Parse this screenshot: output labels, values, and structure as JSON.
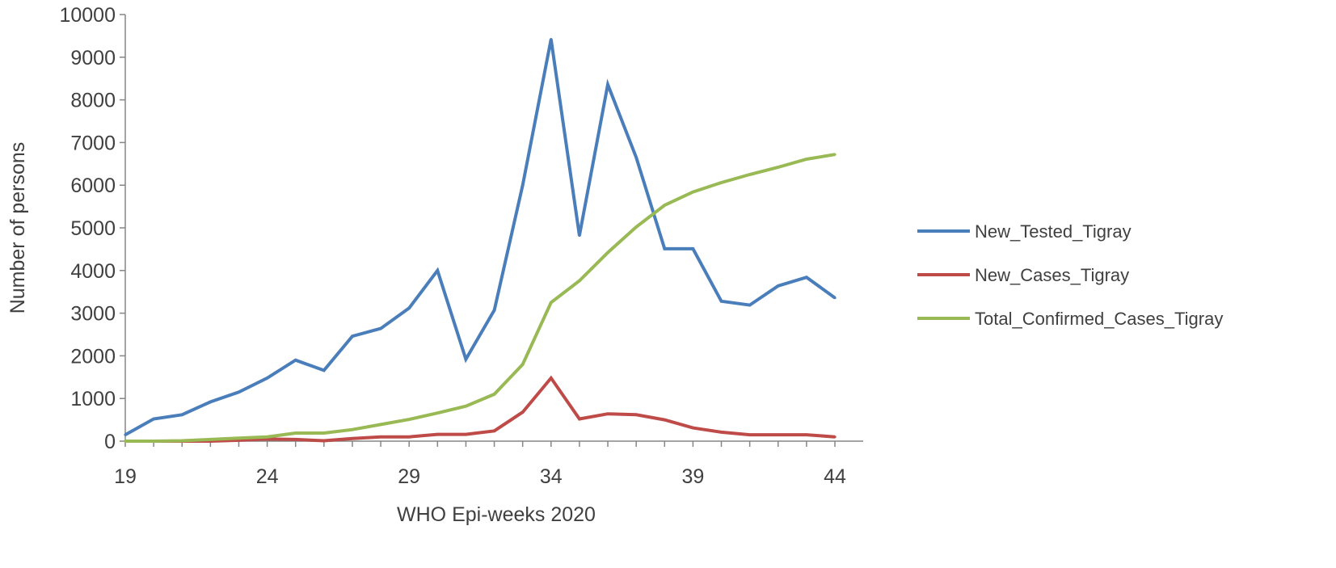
{
  "chart_data": {
    "type": "line",
    "title": "",
    "xlabel": "WHO Epi-weeks 2020",
    "ylabel": "Number of persons",
    "xlim": [
      19,
      44
    ],
    "ylim": [
      0,
      10000
    ],
    "xticks": [
      19,
      24,
      29,
      34,
      39,
      44
    ],
    "yticks": [
      0,
      1000,
      2000,
      3000,
      4000,
      5000,
      6000,
      7000,
      8000,
      9000,
      10000
    ],
    "grid": false,
    "legend_position": "right",
    "x": [
      19,
      20,
      21,
      22,
      23,
      24,
      25,
      26,
      27,
      28,
      29,
      30,
      31,
      32,
      33,
      34,
      35,
      36,
      37,
      38,
      39,
      40,
      41,
      42,
      43,
      44
    ],
    "series": [
      {
        "name": "New_Tested_Tigray",
        "color": "#4A7EBB",
        "values": [
          150,
          520,
          620,
          920,
          1150,
          1480,
          1900,
          1660,
          2460,
          2640,
          3120,
          4000,
          1920,
          3070,
          6000,
          9420,
          4820,
          8360,
          6650,
          4510,
          4510,
          3280,
          3190,
          3640,
          3840,
          3360
        ]
      },
      {
        "name": "New_Cases_Tigray",
        "color": "#BE4B48",
        "values": [
          0,
          0,
          0,
          0,
          20,
          50,
          40,
          10,
          60,
          100,
          100,
          160,
          160,
          240,
          680,
          1480,
          520,
          640,
          620,
          500,
          310,
          210,
          150,
          150,
          150,
          100
        ]
      },
      {
        "name": "Total_Confirmed_Cases_Tigray",
        "color": "#98B954",
        "values": [
          0,
          0,
          10,
          40,
          70,
          100,
          190,
          190,
          270,
          390,
          510,
          660,
          820,
          1100,
          1800,
          3250,
          3760,
          4420,
          5020,
          5530,
          5840,
          6060,
          6250,
          6420,
          6610,
          6720
        ]
      }
    ]
  }
}
